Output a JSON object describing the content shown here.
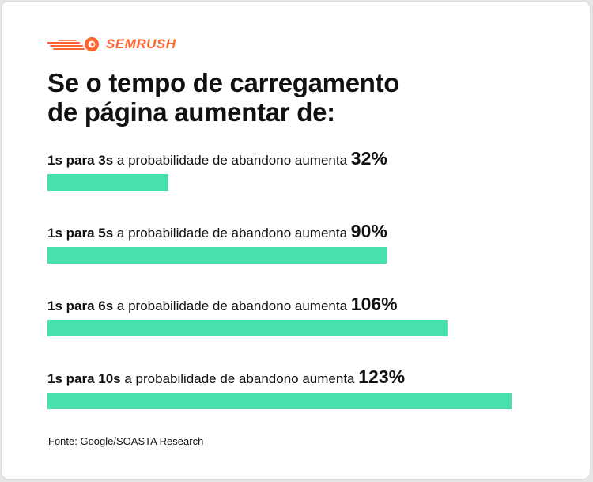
{
  "brand": {
    "name": "SEMRUSH",
    "color": "#ff642d"
  },
  "title": {
    "line1": "Se o tempo de carregamento",
    "line2": "de página aumentar de:"
  },
  "chart_data": {
    "type": "bar",
    "orientation": "horizontal",
    "bar_color": "#47e1ab",
    "middle_text": " a probabilidade de abandono aumenta ",
    "categories": [
      "1s para 3s",
      "1s para 5s",
      "1s para 6s",
      "1s para 10s"
    ],
    "values": [
      32,
      90,
      106,
      123
    ],
    "value_labels": [
      "32%",
      "90%",
      "106%",
      "123%"
    ],
    "xlim": [
      0,
      123
    ]
  },
  "source": "Fonte: Google/SOASTA Research"
}
